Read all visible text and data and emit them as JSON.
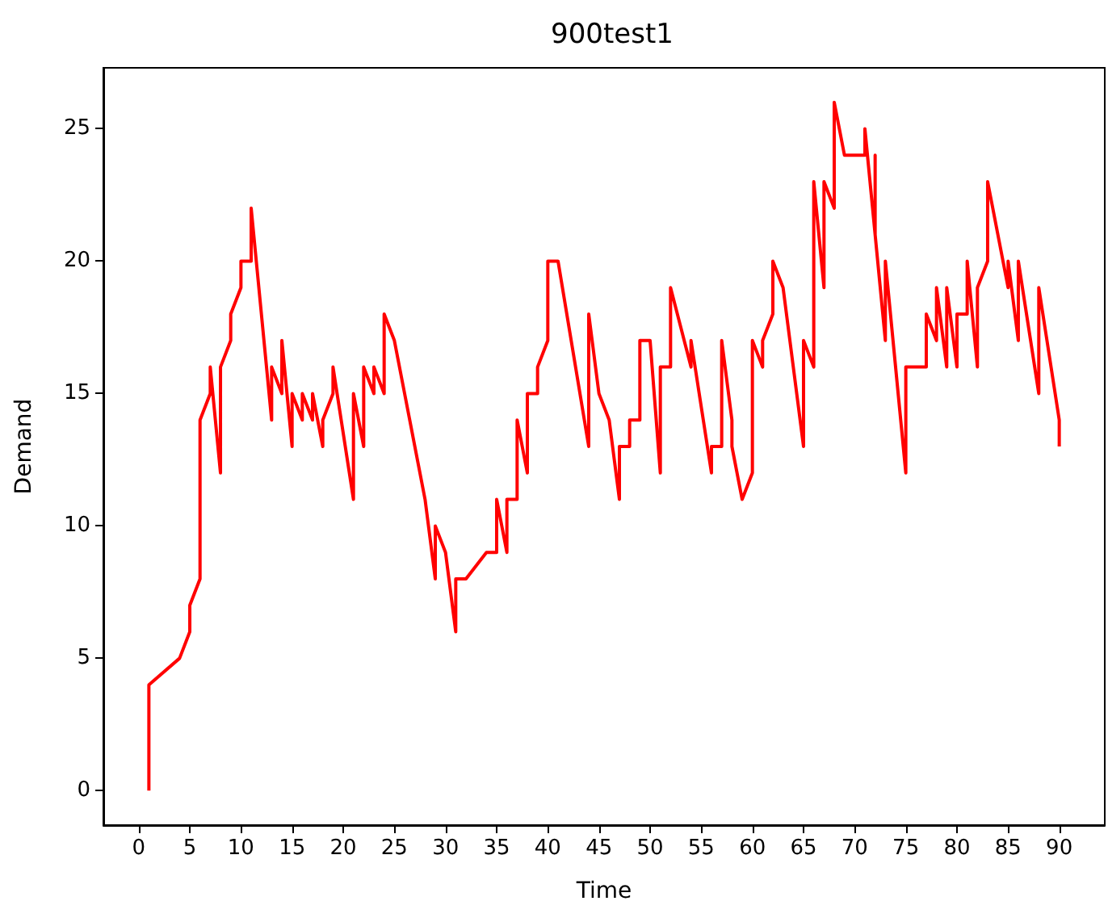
{
  "chart_data": {
    "type": "line",
    "title": "900test1",
    "xlabel": "Time",
    "ylabel": "Demand",
    "x": [
      1,
      1,
      4,
      5,
      5,
      6,
      6,
      7,
      7,
      8,
      8,
      9,
      9,
      10,
      10,
      11,
      11,
      13,
      13,
      14,
      14,
      15,
      15,
      16,
      16,
      17,
      17,
      18,
      18,
      19,
      19,
      21,
      21,
      22,
      22,
      23,
      23,
      24,
      24,
      25,
      28,
      29,
      29,
      30,
      31,
      31,
      32,
      34,
      35,
      35,
      36,
      36,
      37,
      37,
      38,
      38,
      39,
      39,
      40,
      40,
      41,
      44,
      44,
      45,
      46,
      47,
      47,
      48,
      48,
      49,
      49,
      50,
      51,
      51,
      52,
      52,
      54,
      54,
      56,
      56,
      57,
      57,
      58,
      58,
      59,
      60,
      60,
      60,
      61,
      61,
      62,
      62,
      63,
      65,
      65,
      66,
      66,
      67,
      67,
      68,
      68,
      69,
      71,
      71,
      72,
      72,
      72,
      73,
      73,
      75,
      75,
      77,
      77,
      78,
      78,
      79,
      79,
      80,
      80,
      81,
      81,
      82,
      82,
      83,
      83,
      85,
      85,
      86,
      86,
      88,
      88,
      90,
      90
    ],
    "series": [
      {
        "color": "#ff0000",
        "values": [
          0,
          4,
          5,
          6,
          7,
          8,
          14,
          15,
          16,
          12,
          16,
          17,
          18,
          19,
          20,
          20,
          22,
          14,
          16,
          15,
          17,
          13,
          15,
          14,
          15,
          14,
          15,
          13,
          14,
          15,
          16,
          11,
          15,
          13,
          16,
          15,
          16,
          15,
          18,
          17,
          11,
          8,
          10,
          9,
          6,
          8,
          8,
          9,
          9,
          11,
          9,
          11,
          11,
          14,
          12,
          15,
          15,
          16,
          17,
          20,
          20,
          13,
          18,
          15,
          14,
          11,
          13,
          13,
          14,
          14,
          17,
          17,
          12,
          16,
          16,
          19,
          16,
          17,
          12,
          13,
          13,
          17,
          14,
          13,
          11,
          12,
          13,
          17,
          16,
          17,
          18,
          20,
          19,
          13,
          17,
          16,
          23,
          19,
          23,
          22,
          26,
          24,
          24,
          25,
          21,
          24,
          21,
          17,
          20,
          12,
          16,
          16,
          18,
          17,
          19,
          16,
          19,
          16,
          18,
          18,
          20,
          16,
          19,
          20,
          23,
          19,
          20,
          17,
          20,
          15,
          19,
          14,
          13
        ]
      }
    ],
    "xlim": [
      -3.45,
      94.45
    ],
    "ylim": [
      -1.3,
      27.3
    ],
    "xticks": [
      0,
      5,
      10,
      15,
      20,
      25,
      30,
      35,
      40,
      45,
      50,
      55,
      60,
      65,
      70,
      75,
      80,
      85,
      90
    ],
    "yticks": [
      0,
      5,
      10,
      15,
      20,
      25
    ],
    "grid": false,
    "marker": "none",
    "line_style": "solid"
  }
}
